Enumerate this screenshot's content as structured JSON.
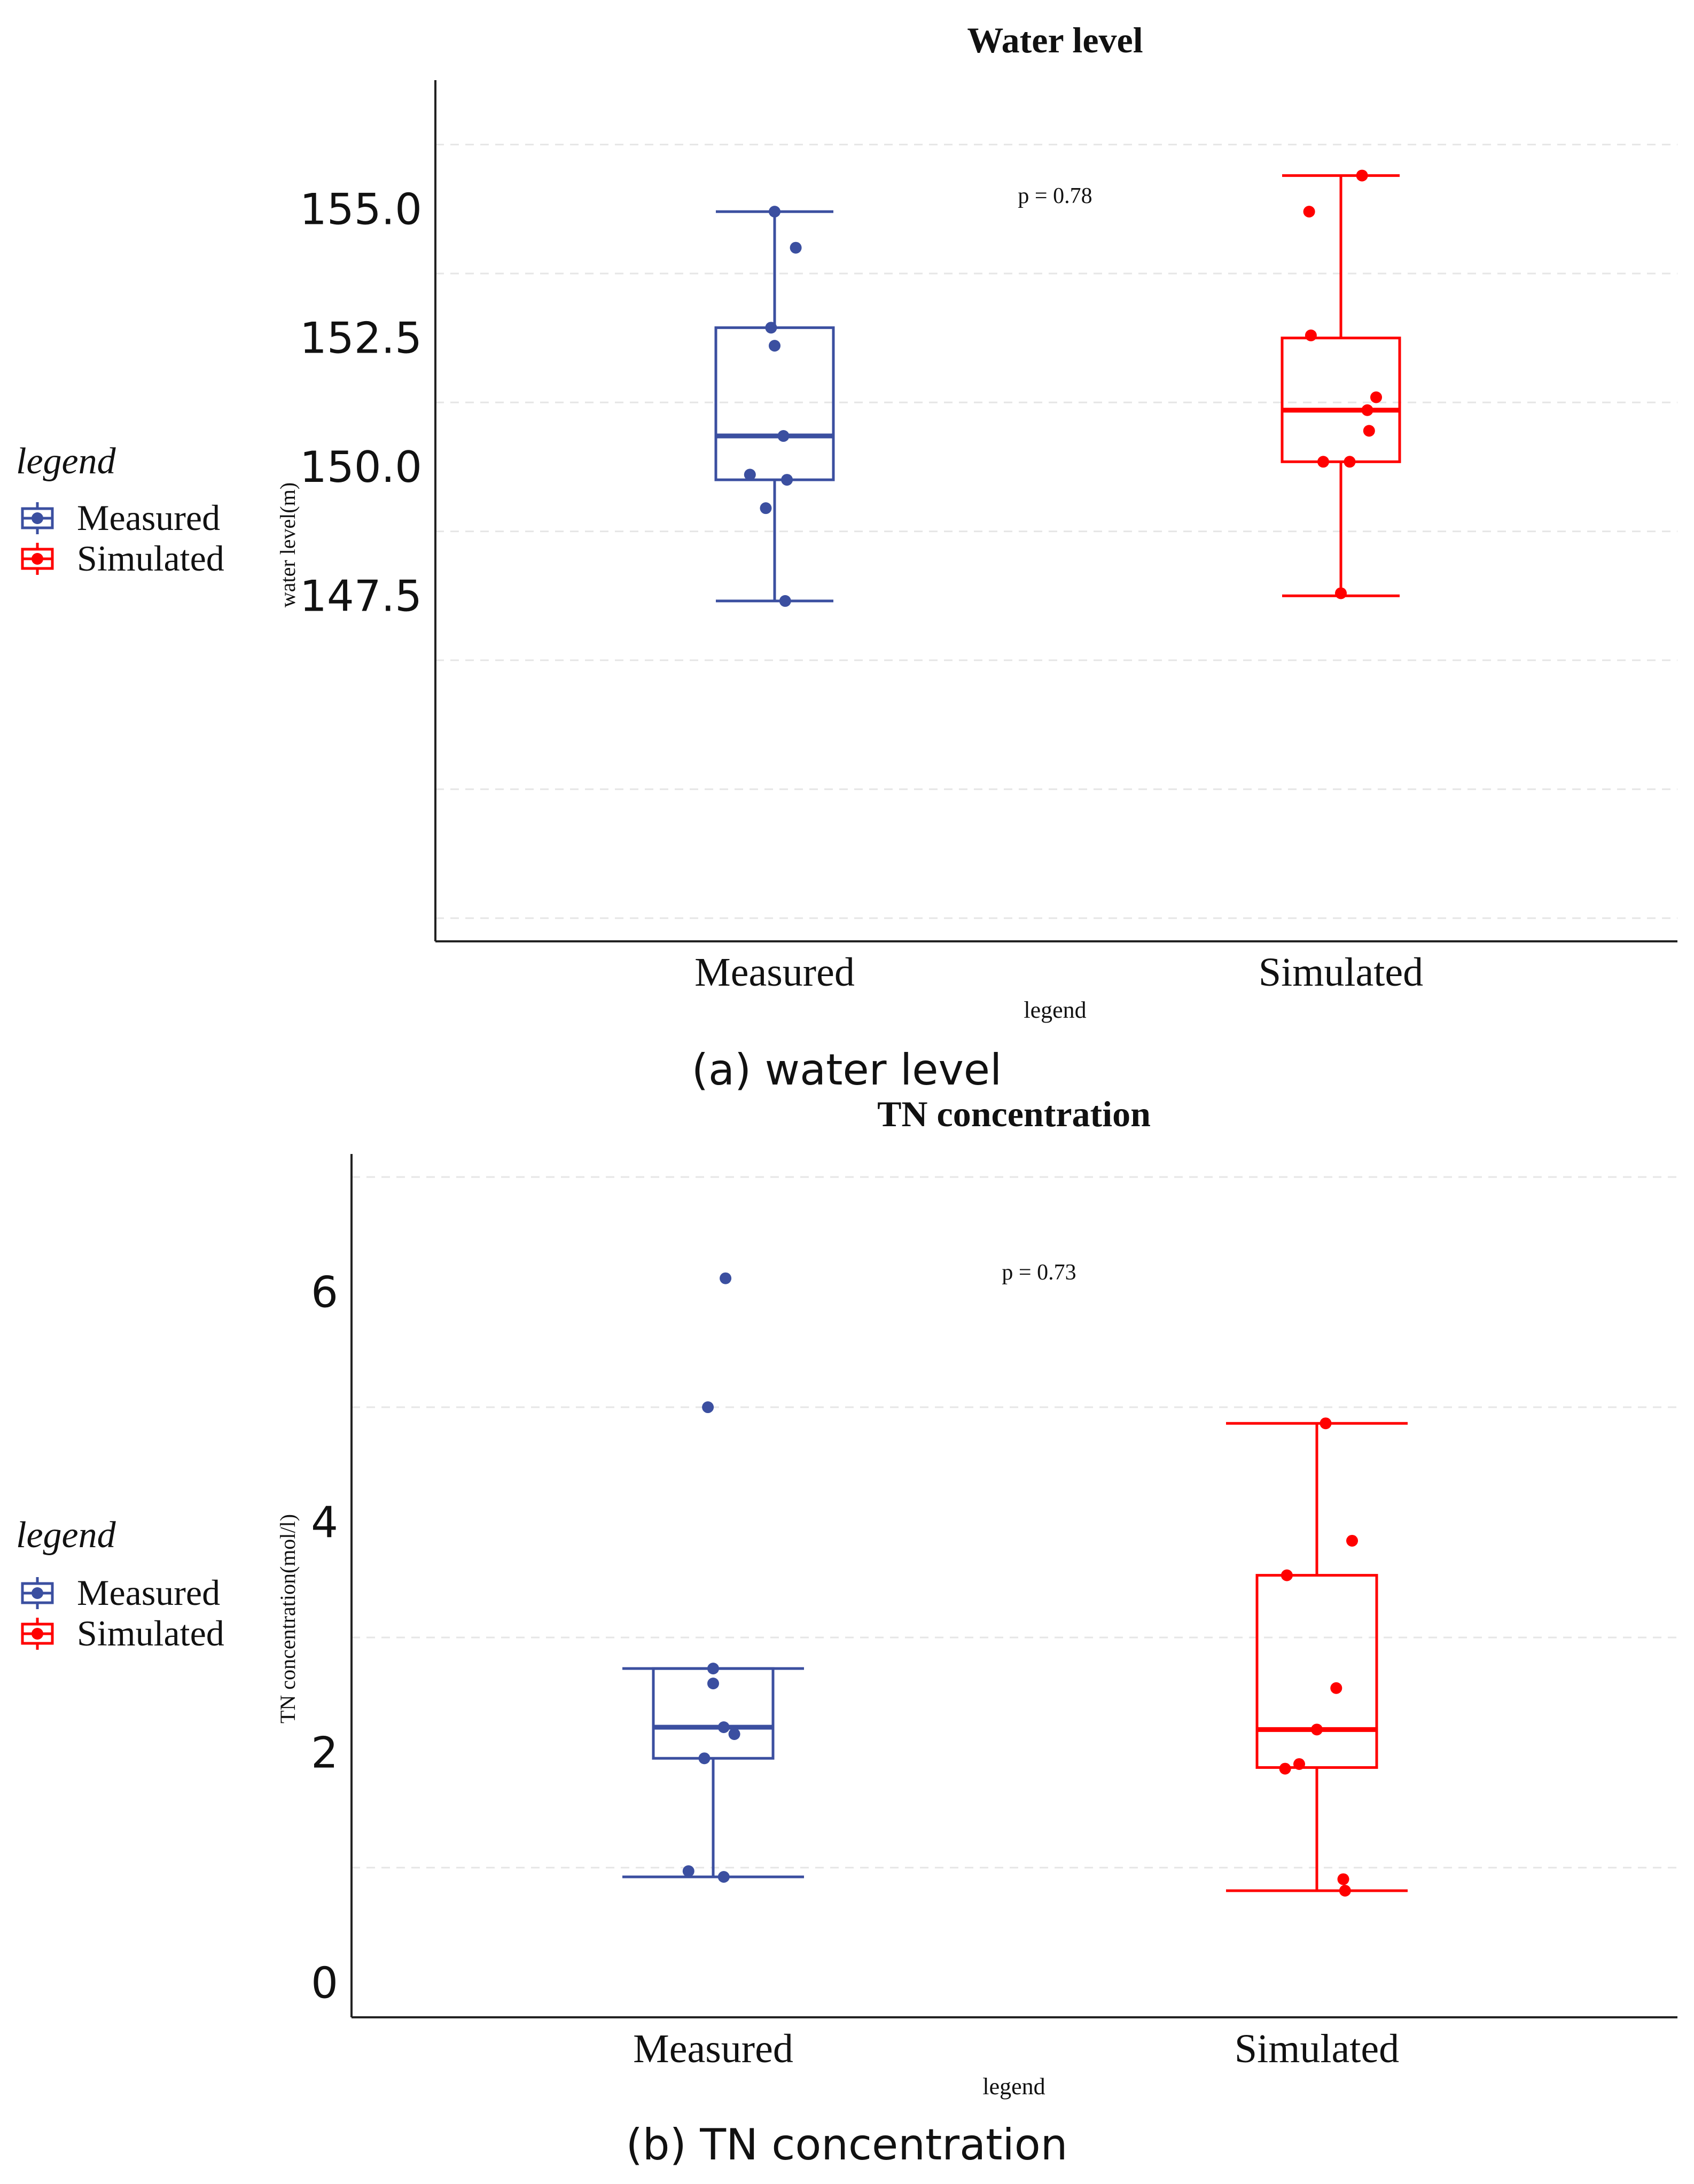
{
  "colors": {
    "measured": "#3b4fa0",
    "simulated": "#ff0000",
    "axis": "#222222",
    "grid": "#e6e6e6",
    "text": "#111111"
  },
  "panels": [
    {
      "caption": "(a) water level"
    },
    {
      "caption": "(b) TN concentration"
    }
  ],
  "chart_data": [
    {
      "type": "box",
      "title": "Water level",
      "xlabel": "legend",
      "ylabel": "water level(m)",
      "ylim": [
        140.8,
        157.5
      ],
      "yticks": [
        147.5,
        150.0,
        152.5,
        155.0
      ],
      "ytick_labels": [
        "147.5",
        "150.0",
        "152.5",
        "155.0"
      ],
      "grid_lines": [
        141.25,
        143.75,
        146.25,
        148.75,
        151.25,
        153.75,
        156.25
      ],
      "annotation": "p = 0.78",
      "annotation_at": {
        "category": 0.5,
        "y": 155.8
      },
      "legend": {
        "title": "legend",
        "position": "left",
        "entries": [
          "Measured",
          "Simulated"
        ]
      },
      "categories": [
        "Measured",
        "Simulated"
      ],
      "series": [
        {
          "name": "Measured",
          "color_key": "measured",
          "box": {
            "min": 147.4,
            "q1": 149.75,
            "median": 150.6,
            "q3": 152.7,
            "max": 154.95
          },
          "points": [
            {
              "jitter": 0.0,
              "y": 154.95
            },
            {
              "jitter": 0.12,
              "y": 154.25
            },
            {
              "jitter": -0.02,
              "y": 152.7
            },
            {
              "jitter": 0.0,
              "y": 152.35
            },
            {
              "jitter": 0.05,
              "y": 150.6
            },
            {
              "jitter": -0.14,
              "y": 149.85
            },
            {
              "jitter": 0.07,
              "y": 149.75
            },
            {
              "jitter": -0.05,
              "y": 149.2
            },
            {
              "jitter": 0.06,
              "y": 147.4
            }
          ]
        },
        {
          "name": "Simulated",
          "color_key": "simulated",
          "box": {
            "min": 147.5,
            "q1": 150.1,
            "median": 151.1,
            "q3": 152.5,
            "max": 155.65
          },
          "points": [
            {
              "jitter": 0.12,
              "y": 155.65
            },
            {
              "jitter": -0.18,
              "y": 154.95
            },
            {
              "jitter": -0.17,
              "y": 152.55
            },
            {
              "jitter": 0.2,
              "y": 151.35
            },
            {
              "jitter": 0.15,
              "y": 151.1
            },
            {
              "jitter": 0.16,
              "y": 150.7
            },
            {
              "jitter": -0.1,
              "y": 150.1
            },
            {
              "jitter": 0.05,
              "y": 150.1
            },
            {
              "jitter": 0.0,
              "y": 147.55
            }
          ]
        }
      ]
    },
    {
      "type": "box",
      "title": "TN concentration",
      "xlabel": "legend",
      "ylabel": "TN concentration(mol/l)",
      "ylim": [
        -0.3,
        7.2
      ],
      "yticks": [
        0,
        2,
        4,
        6
      ],
      "ytick_labels": [
        "0",
        "2",
        "4",
        "6"
      ],
      "grid_lines": [
        1,
        3,
        5,
        7
      ],
      "annotation": "p = 0.73",
      "annotation_at": {
        "category": 0.5,
        "y": 6.2
      },
      "legend": {
        "title": "legend",
        "position": "left",
        "entries": [
          "Measured",
          "Simulated"
        ]
      },
      "categories": [
        "Measured",
        "Simulated"
      ],
      "series": [
        {
          "name": "Measured",
          "color_key": "measured",
          "box": {
            "min": 0.92,
            "q1": 1.95,
            "median": 2.22,
            "q3": 2.73,
            "max": 2.73
          },
          "points": [
            {
              "jitter": 0.07,
              "y": 6.12
            },
            {
              "jitter": -0.03,
              "y": 5.0
            },
            {
              "jitter": 0.0,
              "y": 2.73
            },
            {
              "jitter": 0.0,
              "y": 2.6
            },
            {
              "jitter": 0.06,
              "y": 2.22
            },
            {
              "jitter": 0.12,
              "y": 2.16
            },
            {
              "jitter": -0.05,
              "y": 1.95
            },
            {
              "jitter": -0.14,
              "y": 0.97
            },
            {
              "jitter": 0.06,
              "y": 0.92
            }
          ]
        },
        {
          "name": "Simulated",
          "color_key": "simulated",
          "box": {
            "min": 0.8,
            "q1": 1.87,
            "median": 2.2,
            "q3": 3.54,
            "max": 4.86
          },
          "points": [
            {
              "jitter": 0.05,
              "y": 4.86
            },
            {
              "jitter": 0.2,
              "y": 3.84
            },
            {
              "jitter": -0.17,
              "y": 3.54
            },
            {
              "jitter": 0.11,
              "y": 2.56
            },
            {
              "jitter": 0.0,
              "y": 2.2
            },
            {
              "jitter": -0.1,
              "y": 1.9
            },
            {
              "jitter": -0.18,
              "y": 1.86
            },
            {
              "jitter": 0.15,
              "y": 0.9
            },
            {
              "jitter": 0.16,
              "y": 0.8
            }
          ]
        }
      ]
    }
  ]
}
